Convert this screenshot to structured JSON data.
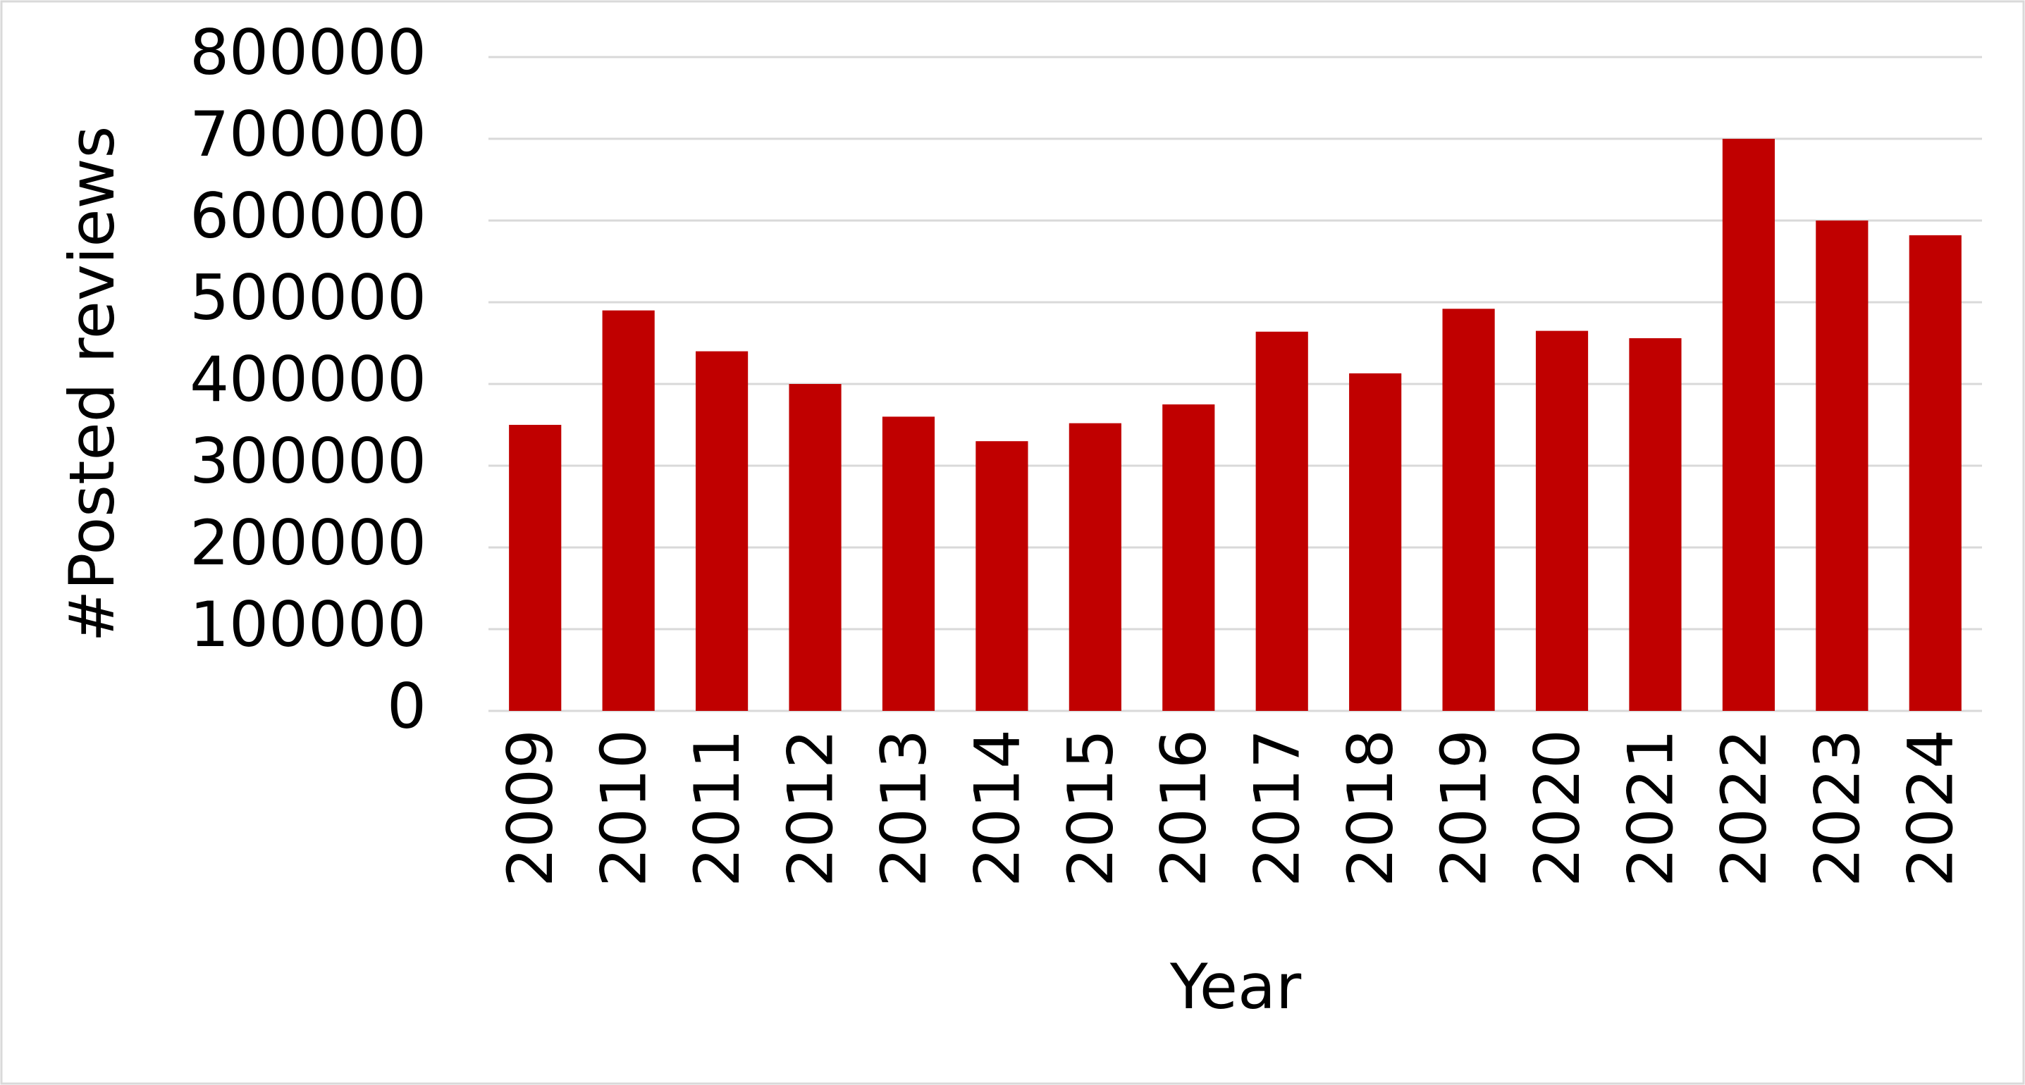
{
  "chart_data": {
    "type": "bar",
    "x_label": "Year",
    "y_label": "#Posted reviews",
    "categories": [
      "2009",
      "2010",
      "2011",
      "2012",
      "2013",
      "2014",
      "2015",
      "2016",
      "2017",
      "2018",
      "2019",
      "2020",
      "2021",
      "2022",
      "2023",
      "2024"
    ],
    "values": [
      350000,
      490000,
      440000,
      400000,
      360000,
      330000,
      352000,
      375000,
      464000,
      413000,
      492000,
      465000,
      456000,
      700000,
      600000,
      582000
    ],
    "color": "#c00000",
    "ylim": [
      0,
      800000
    ],
    "yticks": [
      0,
      100000,
      200000,
      300000,
      400000,
      500000,
      600000,
      700000,
      800000
    ],
    "grid": true
  }
}
